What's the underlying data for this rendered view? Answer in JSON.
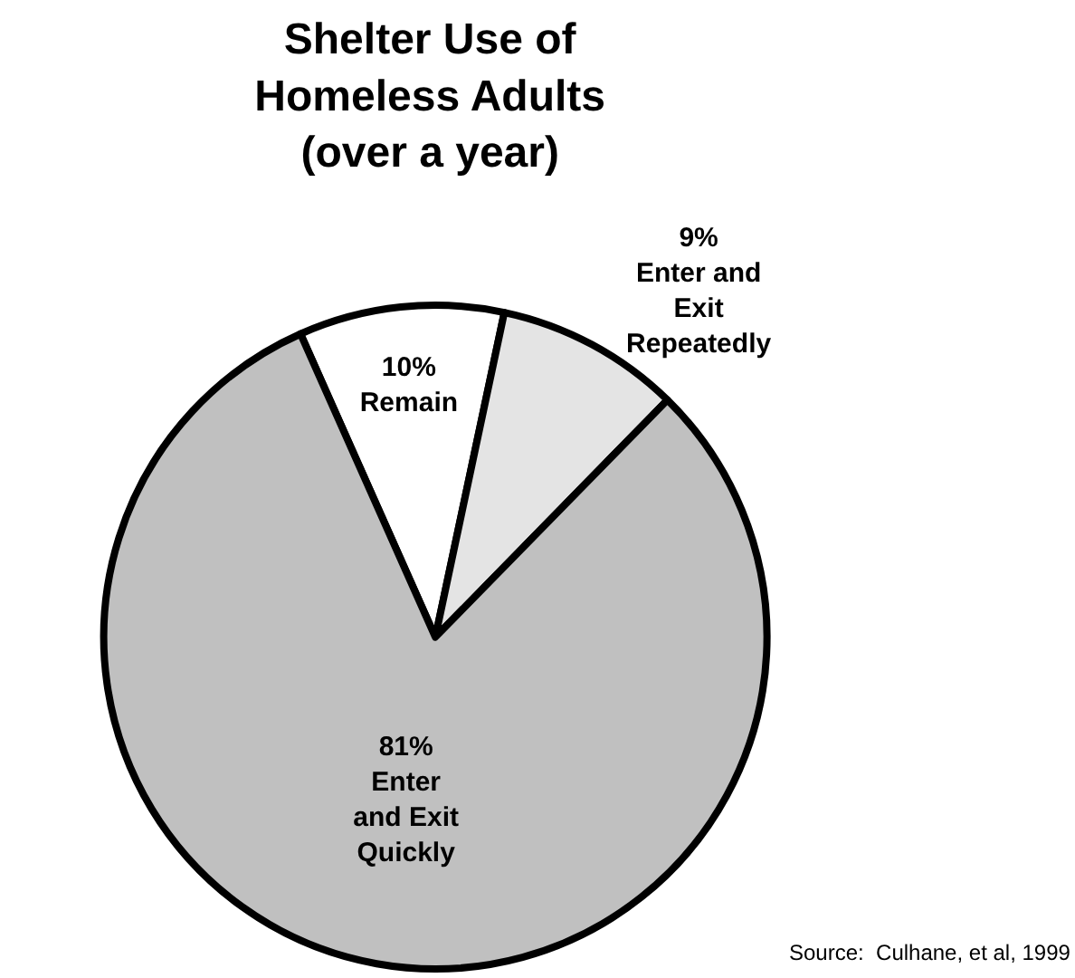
{
  "chart_data": {
    "type": "pie",
    "title": "Shelter Use of\nHomeless Adults\n(over a year)",
    "categories": [
      "Remain",
      "Enter and\nExit\nRepeatedly",
      "Enter\nand Exit\nQuickly"
    ],
    "value_labels": [
      "10%",
      "9%",
      "81%"
    ],
    "values": [
      10,
      9,
      81
    ],
    "colors": [
      "#ffffff",
      "#e4e4e4",
      "#c0c0c0"
    ],
    "legend": false,
    "annotations": [
      "Source:  Culhane, et al, 1999"
    ]
  }
}
